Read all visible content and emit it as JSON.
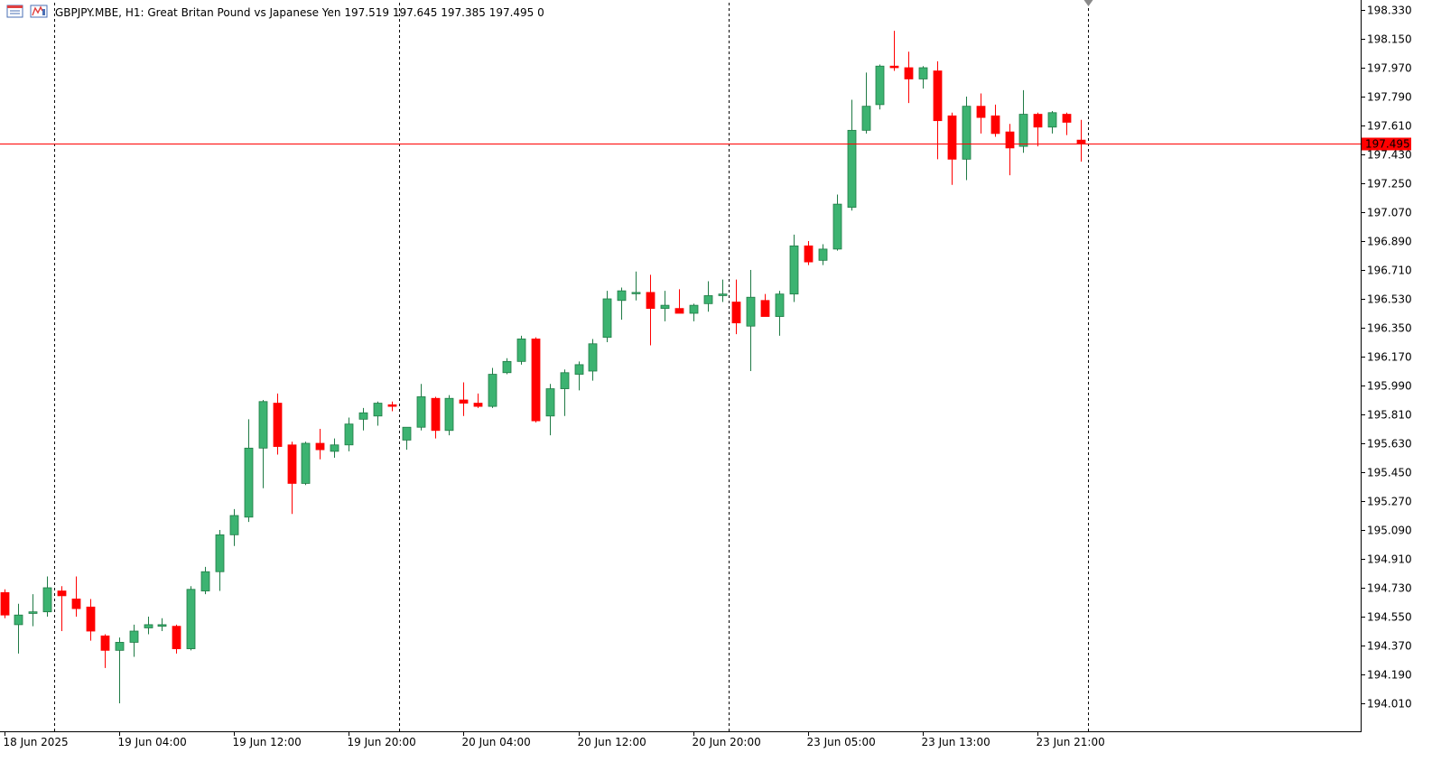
{
  "header": {
    "symbol": "GBPJPY.MBE",
    "timeframe": "H1:",
    "description": "Great Britan Pound vs Japanese Yen",
    "ohlc": "197.519 197.645 197.385 197.495",
    "spread": "0"
  },
  "colors": {
    "bull": "#3cb371",
    "bear": "#ff0000",
    "wick_bull": "#1f7a45",
    "wick_bear": "#ff0000",
    "price_line": "#ff0000",
    "grid": "#000000",
    "axis": "#000000"
  },
  "icons": [
    "chart-list-icon",
    "indicator-icon"
  ],
  "chart_data": {
    "type": "candlestick",
    "symbol": "GBPJPY.MBE",
    "timeframe": "H1",
    "current_price": "197.495",
    "y_range": [
      193.92,
      198.36
    ],
    "y_ticks": [
      "198.330",
      "198.150",
      "197.970",
      "197.790",
      "197.610",
      "197.430",
      "197.250",
      "197.070",
      "196.890",
      "196.710",
      "196.530",
      "196.350",
      "196.170",
      "195.990",
      "195.810",
      "195.630",
      "195.450",
      "195.270",
      "195.090",
      "194.910",
      "194.730",
      "194.550",
      "194.370",
      "194.190",
      "194.010"
    ],
    "x_ticks": [
      {
        "index": 0,
        "label": "18 Jun 2025"
      },
      {
        "index": 8,
        "label": "19 Jun 04:00"
      },
      {
        "index": 16,
        "label": "19 Jun 12:00"
      },
      {
        "index": 24,
        "label": "19 Jun 20:00"
      },
      {
        "index": 32,
        "label": "20 Jun 04:00"
      },
      {
        "index": 40,
        "label": "20 Jun 12:00"
      },
      {
        "index": 48,
        "label": "20 Jun 20:00"
      },
      {
        "index": 56,
        "label": "23 Jun 05:00"
      },
      {
        "index": 64,
        "label": "23 Jun 13:00"
      },
      {
        "index": 72,
        "label": "23 Jun 21:00"
      }
    ],
    "period_separators": [
      3.5,
      27.5,
      50.5,
      75.5
    ],
    "candles": [
      [
        194.7,
        194.72,
        194.54,
        194.56
      ],
      [
        194.5,
        194.63,
        194.32,
        194.56
      ],
      [
        194.57,
        194.69,
        194.49,
        194.58
      ],
      [
        194.58,
        194.8,
        194.55,
        194.73
      ],
      [
        194.71,
        194.74,
        194.46,
        194.68
      ],
      [
        194.66,
        194.8,
        194.55,
        194.6
      ],
      [
        194.61,
        194.66,
        194.4,
        194.46
      ],
      [
        194.43,
        194.44,
        194.23,
        194.34
      ],
      [
        194.34,
        194.42,
        194.01,
        194.39
      ],
      [
        194.39,
        194.5,
        194.3,
        194.46
      ],
      [
        194.48,
        194.55,
        194.44,
        194.5
      ],
      [
        194.49,
        194.54,
        194.46,
        194.5
      ],
      [
        194.49,
        194.5,
        194.32,
        194.35
      ],
      [
        194.35,
        194.74,
        194.34,
        194.72
      ],
      [
        194.71,
        194.86,
        194.69,
        194.83
      ],
      [
        194.83,
        195.09,
        194.71,
        195.06
      ],
      [
        195.06,
        195.22,
        194.99,
        195.18
      ],
      [
        195.17,
        195.78,
        195.14,
        195.6
      ],
      [
        195.6,
        195.9,
        195.35,
        195.89
      ],
      [
        195.88,
        195.94,
        195.56,
        195.61
      ],
      [
        195.62,
        195.64,
        195.19,
        195.38
      ],
      [
        195.38,
        195.64,
        195.37,
        195.63
      ],
      [
        195.63,
        195.72,
        195.53,
        195.59
      ],
      [
        195.58,
        195.66,
        195.54,
        195.62
      ],
      [
        195.62,
        195.79,
        195.58,
        195.75
      ],
      [
        195.78,
        195.85,
        195.71,
        195.82
      ],
      [
        195.8,
        195.89,
        195.74,
        195.88
      ],
      [
        195.87,
        195.89,
        195.83,
        195.86
      ],
      [
        195.65,
        195.73,
        195.59,
        195.73
      ],
      [
        195.73,
        196.0,
        195.71,
        195.92
      ],
      [
        195.91,
        195.92,
        195.66,
        195.71
      ],
      [
        195.71,
        195.93,
        195.68,
        195.91
      ],
      [
        195.9,
        196.01,
        195.8,
        195.88
      ],
      [
        195.88,
        195.94,
        195.85,
        195.86
      ],
      [
        195.86,
        196.1,
        195.85,
        196.06
      ],
      [
        196.07,
        196.16,
        196.06,
        196.14
      ],
      [
        196.14,
        196.3,
        196.12,
        196.28
      ],
      [
        196.28,
        196.29,
        195.76,
        195.77
      ],
      [
        195.8,
        196.0,
        195.68,
        195.97
      ],
      [
        195.97,
        196.09,
        195.8,
        196.07
      ],
      [
        196.06,
        196.14,
        195.96,
        196.12
      ],
      [
        196.08,
        196.28,
        196.02,
        196.25
      ],
      [
        196.29,
        196.58,
        196.26,
        196.53
      ],
      [
        196.52,
        196.6,
        196.4,
        196.58
      ],
      [
        196.57,
        196.7,
        196.52,
        196.57
      ],
      [
        196.57,
        196.68,
        196.24,
        196.47
      ],
      [
        196.47,
        196.58,
        196.39,
        196.49
      ],
      [
        196.47,
        196.59,
        196.46,
        196.44
      ],
      [
        196.44,
        196.5,
        196.39,
        196.49
      ],
      [
        196.5,
        196.64,
        196.45,
        196.55
      ],
      [
        196.55,
        196.65,
        196.51,
        196.56
      ],
      [
        196.51,
        196.65,
        196.31,
        196.38
      ],
      [
        196.36,
        196.71,
        196.08,
        196.54
      ],
      [
        196.52,
        196.56,
        196.42,
        196.42
      ],
      [
        196.42,
        196.58,
        196.3,
        196.56
      ],
      [
        196.56,
        196.93,
        196.51,
        196.86
      ],
      [
        196.86,
        196.89,
        196.74,
        196.76
      ],
      [
        196.77,
        196.87,
        196.74,
        196.84
      ],
      [
        196.84,
        197.18,
        196.83,
        197.12
      ],
      [
        197.1,
        197.77,
        197.08,
        197.58
      ],
      [
        197.58,
        197.94,
        197.56,
        197.73
      ],
      [
        197.74,
        197.99,
        197.71,
        197.98
      ],
      [
        197.98,
        198.2,
        197.95,
        197.97
      ],
      [
        197.97,
        198.07,
        197.75,
        197.9
      ],
      [
        197.9,
        197.98,
        197.84,
        197.97
      ],
      [
        197.95,
        198.01,
        197.4,
        197.64
      ],
      [
        197.67,
        197.69,
        197.24,
        197.4
      ],
      [
        197.4,
        197.79,
        197.27,
        197.73
      ],
      [
        197.73,
        197.81,
        197.56,
        197.66
      ],
      [
        197.67,
        197.74,
        197.54,
        197.56
      ],
      [
        197.57,
        197.62,
        197.3,
        197.47
      ],
      [
        197.48,
        197.83,
        197.44,
        197.68
      ],
      [
        197.68,
        197.69,
        197.48,
        197.6
      ],
      [
        197.6,
        197.7,
        197.56,
        197.69
      ],
      [
        197.68,
        197.69,
        197.55,
        197.63
      ],
      [
        197.519,
        197.645,
        197.385,
        197.495
      ]
    ]
  }
}
